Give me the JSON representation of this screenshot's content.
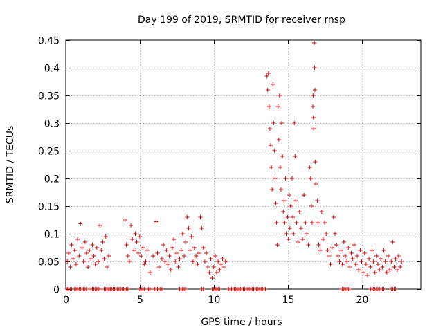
{
  "chart_data": {
    "type": "scatter",
    "title": "Day 199 of 2019, SRMTID for receiver rnsp",
    "xlabel": "GPS time / hours",
    "ylabel": "SRMTID / TECUs",
    "xlim": [
      0,
      24
    ],
    "ylim": [
      0,
      0.45
    ],
    "xticks": [
      0,
      5,
      10,
      15,
      20
    ],
    "yticks": [
      0,
      0.05,
      0.1,
      0.15,
      0.2,
      0.25,
      0.3,
      0.35,
      0.4,
      0.45
    ],
    "xtick_labels": [
      "0",
      "5",
      "10",
      "15",
      "20"
    ],
    "ytick_labels": [
      "0",
      "0.05",
      "0.1",
      "0.15",
      "0.2",
      "0.25",
      "0.3",
      "0.35",
      "0.4",
      "0.45"
    ],
    "grid": true,
    "marker": "+",
    "color": "#e00000",
    "series": [
      {
        "name": "SRMTID",
        "points": [
          [
            0.1,
            0.05
          ],
          [
            0.2,
            0.065
          ],
          [
            0.3,
            0.04
          ],
          [
            0.4,
            0.08
          ],
          [
            0.5,
            0.055
          ],
          [
            0.6,
            0.07
          ],
          [
            0.7,
            0.045
          ],
          [
            0.8,
            0.09
          ],
          [
            0.9,
            0.06
          ],
          [
            1.0,
            0.118
          ],
          [
            1.1,
            0.075
          ],
          [
            1.2,
            0.05
          ],
          [
            1.3,
            0.085
          ],
          [
            1.4,
            0.065
          ],
          [
            1.5,
            0.04
          ],
          [
            1.6,
            0.07
          ],
          [
            1.7,
            0.055
          ],
          [
            1.8,
            0.08
          ],
          [
            1.9,
            0.06
          ],
          [
            2.0,
            0.045
          ],
          [
            2.1,
            0.075
          ],
          [
            2.2,
            0.05
          ],
          [
            2.3,
            0.115
          ],
          [
            2.4,
            0.07
          ],
          [
            2.5,
            0.085
          ],
          [
            2.6,
            0.055
          ],
          [
            2.7,
            0.095
          ],
          [
            2.8,
            0.04
          ],
          [
            2.9,
            0.06
          ],
          [
            4.0,
            0.125
          ],
          [
            4.1,
            0.08
          ],
          [
            4.2,
            0.06
          ],
          [
            4.3,
            0.05
          ],
          [
            4.4,
            0.115
          ],
          [
            4.5,
            0.09
          ],
          [
            4.6,
            0.07
          ],
          [
            4.7,
            0.1
          ],
          [
            4.8,
            0.085
          ],
          [
            4.9,
            0.065
          ],
          [
            5.0,
            0.095
          ],
          [
            5.1,
            0.06
          ],
          [
            5.2,
            0.075
          ],
          [
            5.3,
            0.045
          ],
          [
            5.4,
            0.05
          ],
          [
            5.5,
            0.07
          ],
          [
            5.7,
            0.03
          ],
          [
            5.9,
            0.06
          ],
          [
            6.1,
            0.122
          ],
          [
            6.2,
            0.065
          ],
          [
            6.3,
            0.04
          ],
          [
            6.5,
            0.055
          ],
          [
            6.6,
            0.08
          ],
          [
            6.7,
            0.05
          ],
          [
            6.8,
            0.07
          ],
          [
            6.9,
            0.045
          ],
          [
            7.0,
            0.06
          ],
          [
            7.1,
            0.035
          ],
          [
            7.2,
            0.075
          ],
          [
            7.3,
            0.09
          ],
          [
            7.4,
            0.05
          ],
          [
            7.5,
            0.065
          ],
          [
            7.6,
            0.04
          ],
          [
            7.7,
            0.055
          ],
          [
            7.8,
            0.07
          ],
          [
            7.9,
            0.1
          ],
          [
            8.0,
            0.06
          ],
          [
            8.1,
            0.085
          ],
          [
            8.2,
            0.13
          ],
          [
            8.3,
            0.11
          ],
          [
            8.4,
            0.07
          ],
          [
            8.5,
            0.095
          ],
          [
            8.6,
            0.05
          ],
          [
            8.7,
            0.075
          ],
          [
            8.8,
            0.06
          ],
          [
            8.9,
            0.045
          ],
          [
            9.0,
            0.065
          ],
          [
            9.1,
            0.13
          ],
          [
            9.2,
            0.11
          ],
          [
            9.3,
            0.075
          ],
          [
            9.4,
            0.05
          ],
          [
            9.5,
            0.065
          ],
          [
            9.6,
            0.04
          ],
          [
            9.7,
            0.03
          ],
          [
            9.8,
            0.055
          ],
          [
            9.9,
            0.02
          ],
          [
            10.0,
            0.04
          ],
          [
            10.1,
            0.06
          ],
          [
            10.2,
            0.03
          ],
          [
            10.3,
            0.05
          ],
          [
            10.4,
            0.035
          ],
          [
            10.5,
            0.045
          ],
          [
            10.6,
            0.055
          ],
          [
            10.7,
            0.04
          ],
          [
            10.8,
            0.05
          ],
          [
            13.6,
            0.385
          ],
          [
            13.65,
            0.36
          ],
          [
            13.7,
            0.39
          ],
          [
            13.75,
            0.33
          ],
          [
            13.8,
            0.29
          ],
          [
            13.85,
            0.26
          ],
          [
            13.9,
            0.22
          ],
          [
            13.95,
            0.18
          ],
          [
            14.0,
            0.37
          ],
          [
            14.05,
            0.3
          ],
          [
            14.1,
            0.25
          ],
          [
            14.15,
            0.2
          ],
          [
            14.2,
            0.155
          ],
          [
            14.25,
            0.12
          ],
          [
            14.3,
            0.08
          ],
          [
            14.35,
            0.33
          ],
          [
            14.4,
            0.27
          ],
          [
            14.45,
            0.35
          ],
          [
            14.5,
            0.22
          ],
          [
            14.55,
            0.18
          ],
          [
            14.6,
            0.3
          ],
          [
            14.65,
            0.24
          ],
          [
            14.7,
            0.14
          ],
          [
            14.75,
            0.16
          ],
          [
            14.8,
            0.12
          ],
          [
            14.85,
            0.2
          ],
          [
            14.9,
            0.1
          ],
          [
            15.0,
            0.13
          ],
          [
            15.05,
            0.09
          ],
          [
            15.1,
            0.17
          ],
          [
            15.15,
            0.11
          ],
          [
            15.2,
            0.15
          ],
          [
            15.3,
            0.2
          ],
          [
            15.35,
            0.13
          ],
          [
            15.4,
            0.1
          ],
          [
            15.45,
            0.3
          ],
          [
            15.5,
            0.24
          ],
          [
            15.55,
            0.16
          ],
          [
            15.6,
            0.12
          ],
          [
            15.7,
            0.085
          ],
          [
            15.8,
            0.14
          ],
          [
            15.9,
            0.11
          ],
          [
            16.0,
            0.09
          ],
          [
            16.1,
            0.17
          ],
          [
            16.2,
            0.12
          ],
          [
            16.3,
            0.1
          ],
          [
            16.4,
            0.08
          ],
          [
            16.5,
            0.22
          ],
          [
            16.55,
            0.2
          ],
          [
            16.6,
            0.15
          ],
          [
            16.65,
            0.12
          ],
          [
            16.7,
            0.33
          ],
          [
            16.72,
            0.35
          ],
          [
            16.74,
            0.31
          ],
          [
            16.76,
            0.29
          ],
          [
            16.8,
            0.445
          ],
          [
            16.82,
            0.4
          ],
          [
            16.84,
            0.36
          ],
          [
            16.86,
            0.23
          ],
          [
            16.9,
            0.19
          ],
          [
            17.0,
            0.16
          ],
          [
            17.05,
            0.12
          ],
          [
            17.1,
            0.08
          ],
          [
            17.2,
            0.07
          ],
          [
            17.3,
            0.14
          ],
          [
            17.4,
            0.09
          ],
          [
            17.5,
            0.12
          ],
          [
            17.6,
            0.1
          ],
          [
            17.7,
            0.07
          ],
          [
            17.8,
            0.06
          ],
          [
            17.9,
            0.045
          ],
          [
            18.0,
            0.075
          ],
          [
            18.1,
            0.13
          ],
          [
            18.2,
            0.1
          ],
          [
            18.3,
            0.08
          ],
          [
            18.4,
            0.06
          ],
          [
            18.5,
            0.05
          ],
          [
            18.6,
            0.07
          ],
          [
            18.7,
            0.045
          ],
          [
            18.8,
            0.085
          ],
          [
            18.9,
            0.06
          ],
          [
            19.0,
            0.05
          ],
          [
            19.1,
            0.075
          ],
          [
            19.2,
            0.04
          ],
          [
            19.3,
            0.065
          ],
          [
            19.4,
            0.055
          ],
          [
            19.5,
            0.08
          ],
          [
            19.6,
            0.045
          ],
          [
            19.7,
            0.06
          ],
          [
            19.8,
            0.035
          ],
          [
            19.9,
            0.07
          ],
          [
            20.0,
            0.05
          ],
          [
            20.1,
            0.03
          ],
          [
            20.2,
            0.065
          ],
          [
            20.3,
            0.045
          ],
          [
            20.4,
            0.025
          ],
          [
            20.5,
            0.055
          ],
          [
            20.6,
            0.04
          ],
          [
            20.7,
            0.07
          ],
          [
            20.8,
            0.05
          ],
          [
            20.9,
            0.03
          ],
          [
            21.0,
            0.06
          ],
          [
            21.1,
            0.045
          ],
          [
            21.2,
            0.035
          ],
          [
            21.3,
            0.055
          ],
          [
            21.4,
            0.04
          ],
          [
            21.5,
            0.07
          ],
          [
            21.6,
            0.05
          ],
          [
            21.7,
            0.03
          ],
          [
            21.8,
            0.06
          ],
          [
            21.9,
            0.035
          ],
          [
            22.0,
            0.05
          ],
          [
            22.1,
            0.085
          ],
          [
            22.2,
            0.04
          ],
          [
            22.3,
            0.055
          ],
          [
            22.4,
            0.035
          ],
          [
            22.5,
            0.06
          ],
          [
            22.6,
            0.04
          ],
          [
            22.7,
            0.05
          ]
        ]
      }
    ],
    "zero_segments": [
      [
        0.1,
        0.4
      ],
      [
        0.6,
        1.4
      ],
      [
        1.7,
        2.3
      ],
      [
        2.6,
        3.0
      ],
      [
        3.0,
        4.2
      ],
      [
        5.0,
        5.3
      ],
      [
        5.5,
        5.7
      ],
      [
        6.0,
        6.5
      ],
      [
        7.7,
        8.1
      ],
      [
        9.2,
        9.3
      ],
      [
        9.9,
        10.4
      ],
      [
        11.0,
        13.5
      ],
      [
        18.6,
        19.2
      ],
      [
        20.6,
        20.9
      ],
      [
        21.0,
        21.5
      ],
      [
        22.0,
        22.3
      ]
    ]
  }
}
